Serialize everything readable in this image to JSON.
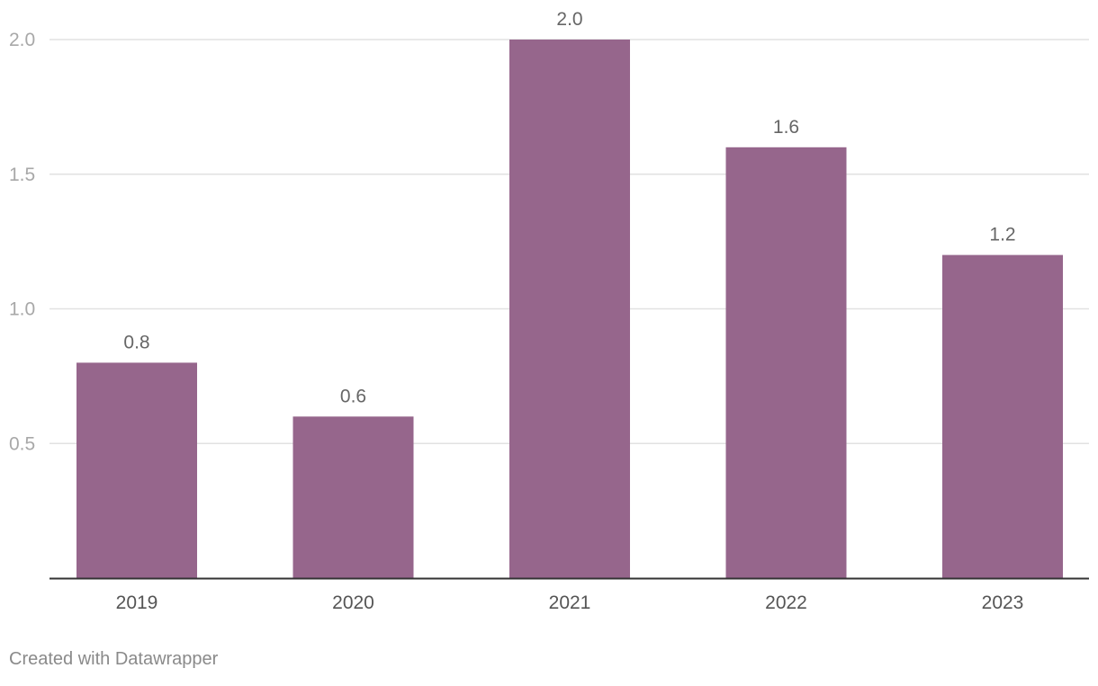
{
  "chart_data": {
    "type": "bar",
    "categories": [
      "2019",
      "2020",
      "2021",
      "2022",
      "2023"
    ],
    "values": [
      0.8,
      0.6,
      2.0,
      1.6,
      1.2
    ],
    "value_labels": [
      "0.8",
      "0.6",
      "2.0",
      "1.6",
      "1.2"
    ],
    "y_ticks": [
      0.5,
      1.0,
      1.5,
      2.0
    ],
    "y_tick_labels": [
      "0.5",
      "1.0",
      "1.5",
      "2.0"
    ],
    "ylim": [
      0,
      2.0
    ],
    "grid": true,
    "title": "",
    "xlabel": "",
    "ylabel": "",
    "colors": {
      "bar": "#96668c",
      "grid": "#e2e2e2",
      "axis": "#333333",
      "tick_label": "#a8a8a8",
      "category_label": "#555555",
      "value_label": "#666666"
    }
  },
  "footer": {
    "credit": "Created with Datawrapper"
  }
}
